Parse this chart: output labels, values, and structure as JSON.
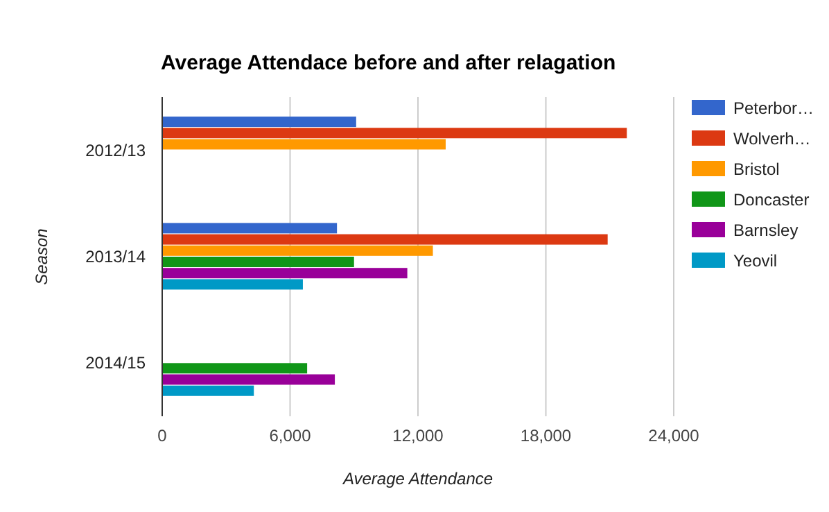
{
  "chart_data": {
    "type": "bar",
    "orientation": "horizontal",
    "title": "Average Attendace before and after relagation",
    "xlabel": "Average Attendance",
    "ylabel": "Season",
    "categories": [
      "2012/13",
      "2013/14",
      "2014/15"
    ],
    "series": [
      {
        "name": "Peterbor…",
        "color": "#3366cc",
        "values": [
          9100,
          8200,
          null
        ]
      },
      {
        "name": "Wolverh…",
        "color": "#dc3912",
        "values": [
          21800,
          20900,
          null
        ]
      },
      {
        "name": "Bristol",
        "color": "#ff9900",
        "values": [
          13300,
          12700,
          null
        ]
      },
      {
        "name": "Doncaster",
        "color": "#109618",
        "values": [
          null,
          9000,
          6800
        ]
      },
      {
        "name": "Barnsley",
        "color": "#990099",
        "values": [
          null,
          11500,
          8100
        ]
      },
      {
        "name": "Yeovil",
        "color": "#0099c6",
        "values": [
          null,
          6600,
          4300
        ]
      }
    ],
    "xlim": [
      0,
      24000
    ],
    "xticks": [
      {
        "value": 0,
        "label": "0"
      },
      {
        "value": 6000,
        "label": "6,000"
      },
      {
        "value": 12000,
        "label": "12,000"
      },
      {
        "value": 18000,
        "label": "18,000"
      },
      {
        "value": 24000,
        "label": "24,000"
      }
    ],
    "grid": "x",
    "legend": "right"
  }
}
